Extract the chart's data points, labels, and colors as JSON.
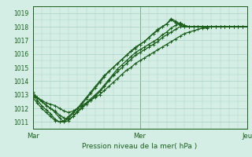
{
  "title": "",
  "xlabel": "Pression niveau de la mer( hPa )",
  "ylabel": "",
  "ylim": [
    1010.5,
    1019.5
  ],
  "xlim": [
    0,
    48
  ],
  "yticks": [
    1011,
    1012,
    1013,
    1014,
    1015,
    1016,
    1017,
    1018,
    1019
  ],
  "xtick_positions": [
    0,
    24,
    48
  ],
  "xtick_labels": [
    "Mar",
    "Mer",
    "Jeu"
  ],
  "bg_color": "#d4eee6",
  "grid_color": "#aacfc4",
  "line_color": "#1a5e1a",
  "linewidth": 0.9,
  "markersize": 2.5,
  "series": [
    {
      "x": [
        0,
        1,
        2,
        3,
        4,
        5,
        6,
        7,
        8,
        9,
        10,
        11,
        12,
        13,
        14,
        15,
        16,
        17,
        18,
        19,
        20,
        21,
        22,
        23,
        24,
        25,
        26,
        27,
        28,
        29,
        30,
        31,
        32,
        33,
        34,
        35,
        36,
        37,
        38,
        39,
        40,
        41,
        42,
        43,
        44,
        45,
        46,
        47,
        48
      ],
      "y": [
        1013.0,
        1012.8,
        1012.6,
        1012.4,
        1012.3,
        1012.2,
        1012.0,
        1011.8,
        1011.7,
        1011.8,
        1012.0,
        1012.2,
        1012.4,
        1012.6,
        1012.8,
        1013.0,
        1013.3,
        1013.6,
        1013.9,
        1014.2,
        1014.5,
        1014.8,
        1015.0,
        1015.3,
        1015.5,
        1015.7,
        1015.9,
        1016.1,
        1016.3,
        1016.5,
        1016.7,
        1016.9,
        1017.1,
        1017.3,
        1017.5,
        1017.6,
        1017.7,
        1017.8,
        1017.9,
        1017.9,
        1018.0,
        1018.0,
        1018.0,
        1018.0,
        1018.0,
        1018.0,
        1018.0,
        1018.0,
        1018.0
      ]
    },
    {
      "x": [
        0,
        1,
        2,
        3,
        4,
        5,
        6,
        7,
        8,
        9,
        10,
        11,
        12,
        13,
        14,
        15,
        16,
        17,
        18,
        19,
        20,
        21,
        22,
        23,
        24,
        25,
        26,
        27,
        28,
        29,
        30,
        31,
        32,
        33,
        34,
        35,
        36,
        37,
        38,
        39,
        40,
        41,
        42,
        43,
        44,
        45,
        46,
        47,
        48
      ],
      "y": [
        1013.2,
        1012.8,
        1012.5,
        1012.2,
        1012.0,
        1011.8,
        1011.5,
        1011.3,
        1011.2,
        1011.4,
        1011.7,
        1012.0,
        1012.3,
        1012.6,
        1012.9,
        1013.2,
        1013.6,
        1014.0,
        1014.4,
        1014.7,
        1015.0,
        1015.3,
        1015.6,
        1015.9,
        1016.1,
        1016.3,
        1016.5,
        1016.7,
        1016.9,
        1017.2,
        1017.4,
        1017.6,
        1017.8,
        1018.0,
        1018.0,
        1018.0,
        1018.0,
        1018.0,
        1018.0,
        1018.0,
        1018.0,
        1018.0,
        1018.0,
        1018.0,
        1018.0,
        1018.0,
        1018.0,
        1018.0,
        1018.0
      ]
    },
    {
      "x": [
        0,
        2,
        4,
        5,
        6,
        7,
        8,
        9,
        10,
        11,
        12,
        13,
        14,
        15,
        16,
        17,
        18,
        19,
        20,
        21,
        22,
        23,
        24,
        25,
        26,
        27,
        28,
        29,
        30,
        31,
        32,
        33,
        34,
        35,
        36,
        37,
        38,
        39,
        40,
        41,
        42,
        43,
        44,
        45,
        46,
        47,
        48
      ],
      "y": [
        1013.0,
        1012.5,
        1012.0,
        1011.7,
        1011.3,
        1011.0,
        1011.1,
        1011.4,
        1011.8,
        1012.1,
        1012.4,
        1012.7,
        1013.0,
        1013.3,
        1013.7,
        1014.1,
        1014.5,
        1014.9,
        1015.2,
        1015.5,
        1015.8,
        1016.1,
        1016.3,
        1016.5,
        1016.7,
        1016.9,
        1017.1,
        1017.4,
        1017.6,
        1017.9,
        1018.1,
        1018.3,
        1018.1,
        1018.0,
        1018.0,
        1018.0,
        1018.0,
        1018.0,
        1018.0,
        1018.0,
        1018.0,
        1018.0,
        1018.0,
        1018.0,
        1018.0,
        1018.0,
        1018.0
      ]
    },
    {
      "x": [
        0,
        1,
        2,
        3,
        4,
        5,
        6,
        7,
        8,
        9,
        10,
        11,
        12,
        13,
        14,
        15,
        16,
        17,
        18,
        19,
        20,
        21,
        22,
        23,
        24,
        25,
        26,
        27,
        28,
        29,
        30,
        31,
        32,
        33,
        34,
        35,
        36,
        37,
        38,
        39,
        40,
        41,
        42,
        43,
        44,
        45,
        46,
        47,
        48
      ],
      "y": [
        1012.8,
        1012.4,
        1012.0,
        1011.7,
        1011.4,
        1011.1,
        1011.0,
        1011.0,
        1011.3,
        1011.6,
        1012.0,
        1012.3,
        1012.7,
        1013.1,
        1013.5,
        1013.9,
        1014.3,
        1014.7,
        1015.0,
        1015.3,
        1015.6,
        1015.9,
        1016.2,
        1016.4,
        1016.7,
        1016.9,
        1017.2,
        1017.5,
        1017.8,
        1018.0,
        1018.2,
        1018.5,
        1018.3,
        1018.1,
        1018.0,
        1018.0,
        1018.0,
        1018.0,
        1018.0,
        1018.0,
        1018.0,
        1018.0,
        1018.0,
        1018.0,
        1018.0,
        1018.0,
        1018.0,
        1018.0,
        1018.0
      ]
    },
    {
      "x": [
        0,
        1,
        2,
        3,
        4,
        5,
        6,
        7,
        8,
        9,
        10,
        11,
        12,
        13,
        14,
        15,
        16,
        17,
        18,
        19,
        20,
        21,
        22,
        23,
        24,
        25,
        26,
        27,
        28,
        29,
        30,
        31,
        32,
        33,
        34,
        35,
        36,
        37,
        38,
        39,
        40,
        41,
        42,
        43,
        44,
        45,
        46,
        47,
        48
      ],
      "y": [
        1013.0,
        1012.6,
        1012.2,
        1011.9,
        1011.6,
        1011.2,
        1011.0,
        1011.1,
        1011.4,
        1011.7,
        1012.0,
        1012.4,
        1012.8,
        1013.2,
        1013.6,
        1014.0,
        1014.4,
        1014.7,
        1015.0,
        1015.3,
        1015.6,
        1015.9,
        1016.2,
        1016.5,
        1016.7,
        1016.9,
        1017.2,
        1017.5,
        1017.7,
        1018.0,
        1018.2,
        1018.6,
        1018.4,
        1018.2,
        1018.1,
        1018.0,
        1018.0,
        1018.0,
        1018.0,
        1018.0,
        1018.0,
        1018.0,
        1018.0,
        1018.0,
        1018.0,
        1018.0,
        1018.0,
        1018.0,
        1018.0
      ]
    }
  ],
  "vline_positions": [
    0,
    24,
    48
  ]
}
